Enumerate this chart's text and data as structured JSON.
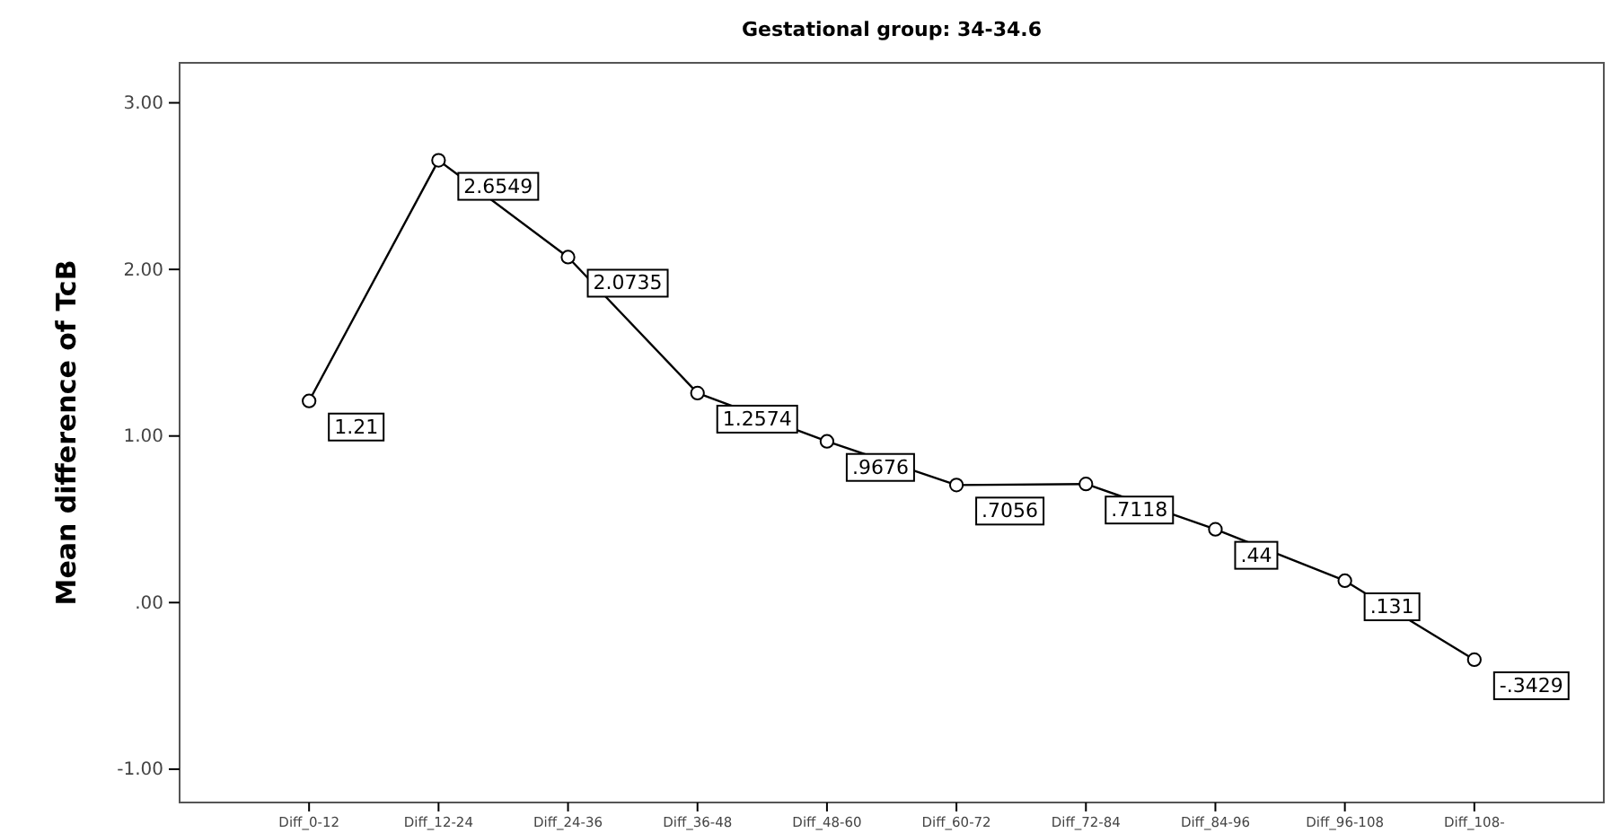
{
  "chart_data": {
    "type": "line",
    "title": "Gestational group: 34-34.6",
    "ylabel": "Mean difference of TcB",
    "categories": [
      "Diff_0-12",
      "Diff_12-24",
      "Diff_24-36",
      "Diff_36-48",
      "Diff_48-60",
      "Diff_60-72",
      "Diff_72-84",
      "Diff_84-96",
      "Diff_96-108",
      "Diff_108-"
    ],
    "series": [
      {
        "color": "#000000",
        "values": [
          1.21,
          2.6549,
          2.0735,
          1.2574,
          0.9676,
          0.7056,
          0.7118,
          0.44,
          0.131,
          -0.3429
        ],
        "value_labels": [
          "1.21",
          "2.6549",
          "2.0735",
          "1.2574",
          ".9676",
          ".7056",
          ".7118",
          ".44",
          ".131",
          "-.3429"
        ]
      }
    ],
    "ylim": [
      -1.2,
      3.24
    ],
    "yticks": [
      {
        "value": -1,
        "label": "-1.00"
      },
      {
        "value": 0,
        "label": ".00"
      },
      {
        "value": 1,
        "label": "1.00"
      },
      {
        "value": 2,
        "label": "2.00"
      },
      {
        "value": 3,
        "label": "3.00"
      }
    ],
    "marker": "circle",
    "line_style": "solid"
  }
}
